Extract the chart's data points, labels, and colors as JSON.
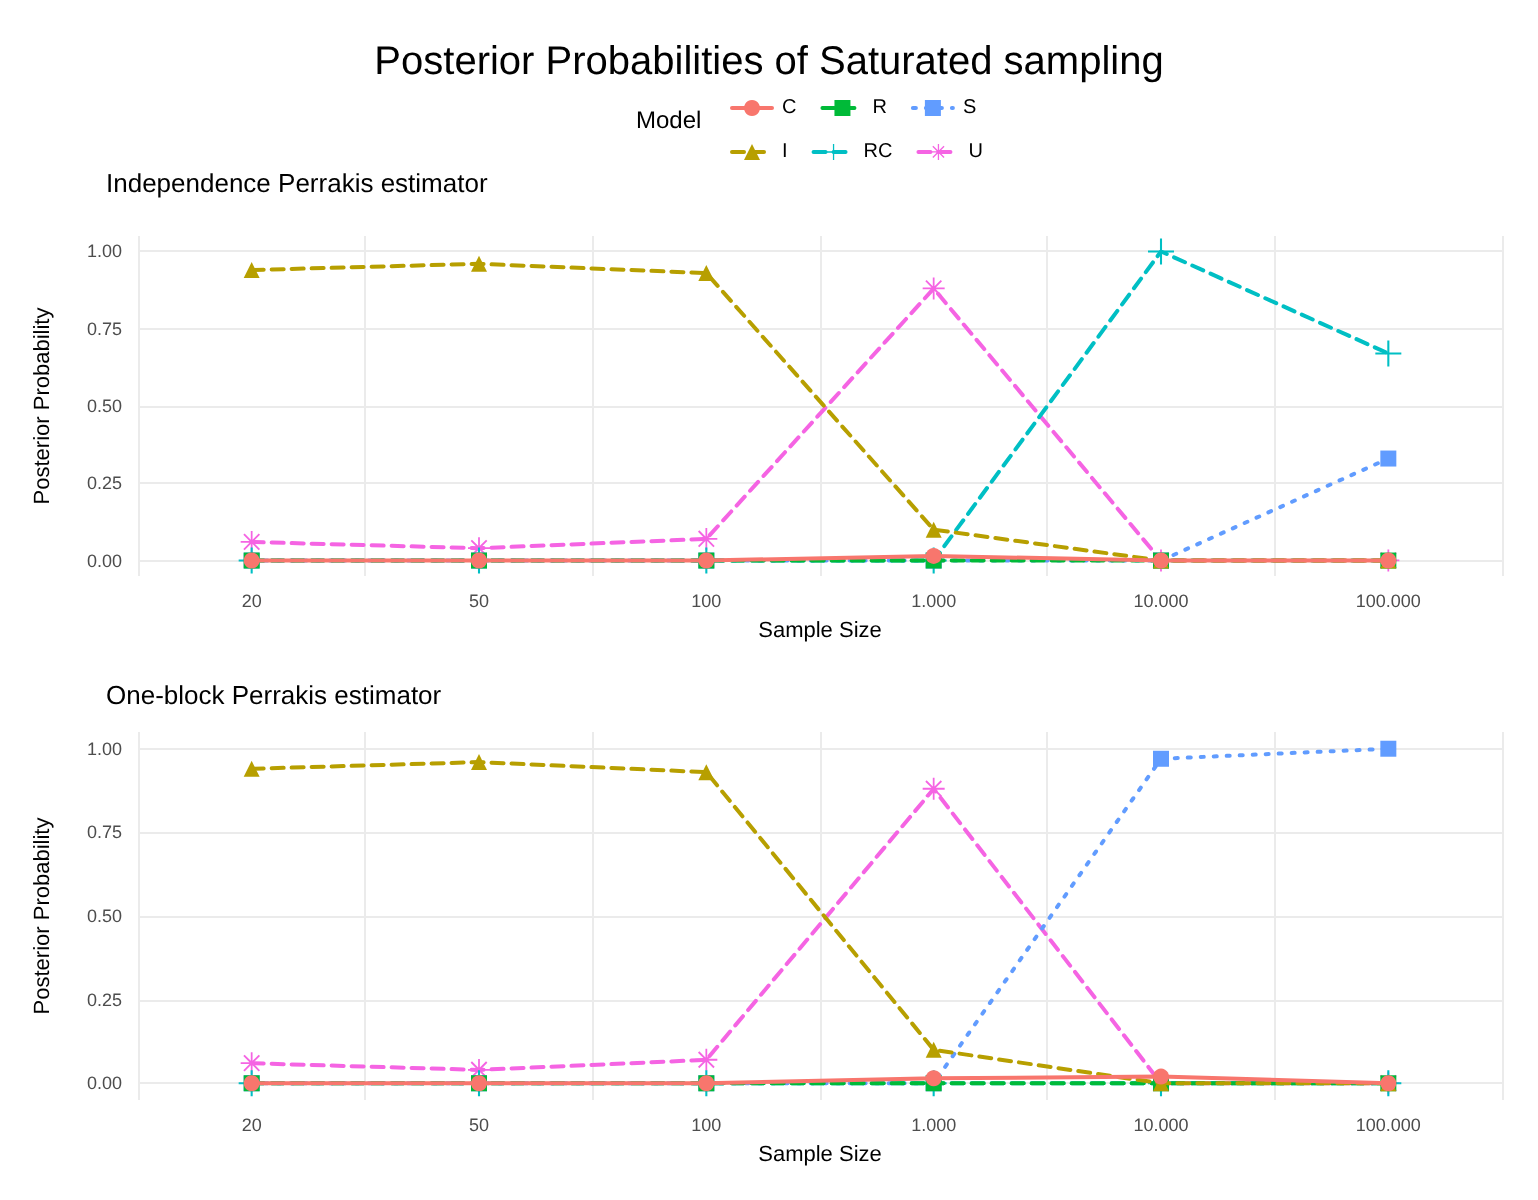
{
  "chart_data": [
    {
      "type": "line",
      "title": "Posterior Probabilities of Saturated sampling",
      "subtitle": "Independence Perrakis estimator",
      "xlabel": "Sample Size",
      "ylabel": "Posterior Probability",
      "legend_title": "Model",
      "legend": "top",
      "grid": true,
      "categories": [
        "20",
        "50",
        "100",
        "1.000",
        "10.000",
        "100.000"
      ],
      "ylim": [
        -0.05,
        1.05
      ],
      "yticks": [
        {
          "value": 0,
          "label": "0.00"
        },
        {
          "value": 0.25,
          "label": "0.25"
        },
        {
          "value": 0.5,
          "label": "0.50"
        },
        {
          "value": 0.75,
          "label": "0.75"
        },
        {
          "value": 1,
          "label": "1.00"
        }
      ],
      "series": [
        {
          "name": "C",
          "color": "#f8766d",
          "marker": "circle",
          "line_style": "solid",
          "values": [
            0,
            0,
            0,
            0.015,
            0,
            0
          ]
        },
        {
          "name": "I",
          "color": "#b79f00",
          "marker": "triangle",
          "line_style": "dashed",
          "values": [
            0.94,
            0.96,
            0.93,
            0.1,
            0,
            0
          ]
        },
        {
          "name": "R",
          "color": "#00ba38",
          "marker": "square",
          "line_style": "dashed",
          "values": [
            0,
            0,
            0,
            0,
            0,
            0
          ]
        },
        {
          "name": "RC",
          "color": "#00bfc4",
          "marker": "cross",
          "line_style": "dashed",
          "values": [
            0,
            0,
            0,
            0,
            1,
            0.67
          ]
        },
        {
          "name": "S",
          "color": "#619cff",
          "marker": "square",
          "line_style": "dotted",
          "values": [
            0,
            0,
            0,
            0,
            0,
            0.33
          ]
        },
        {
          "name": "U",
          "color": "#f564e3",
          "marker": "star",
          "line_style": "dashed",
          "values": [
            0.06,
            0.04,
            0.07,
            0.88,
            0,
            0
          ]
        }
      ]
    },
    {
      "type": "line",
      "title": "One-block Perrakis estimator",
      "xlabel": "Sample Size",
      "ylabel": "Posterior Probability",
      "grid": true,
      "categories": [
        "20",
        "50",
        "100",
        "1.000",
        "10.000",
        "100.000"
      ],
      "ylim": [
        -0.05,
        1.05
      ],
      "yticks": [
        {
          "value": 0,
          "label": "0.00"
        },
        {
          "value": 0.25,
          "label": "0.25"
        },
        {
          "value": 0.5,
          "label": "0.50"
        },
        {
          "value": 0.75,
          "label": "0.75"
        },
        {
          "value": 1,
          "label": "1.00"
        }
      ],
      "series": [
        {
          "color": "#f8766d",
          "marker": "circle",
          "line_style": "solid",
          "values": [
            0,
            0,
            0,
            0.015,
            0.02,
            0
          ]
        },
        {
          "color": "#b79f00",
          "marker": "triangle",
          "line_style": "dashed",
          "values": [
            0.94,
            0.96,
            0.93,
            0.1,
            0,
            0
          ]
        },
        {
          "color": "#00ba38",
          "marker": "square",
          "line_style": "dashed",
          "values": [
            0,
            0,
            0,
            0,
            0,
            0
          ]
        },
        {
          "color": "#00bfc4",
          "marker": "cross",
          "line_style": "dashed",
          "values": [
            0,
            0,
            0,
            0,
            0,
            0
          ]
        },
        {
          "color": "#619cff",
          "marker": "square",
          "line_style": "dotted",
          "values": [
            0,
            0,
            0,
            0,
            0.97,
            1
          ]
        },
        {
          "color": "#f564e3",
          "marker": "star",
          "line_style": "dashed",
          "values": [
            0.06,
            0.04,
            0.07,
            0.88,
            0,
            0
          ]
        }
      ]
    }
  ]
}
